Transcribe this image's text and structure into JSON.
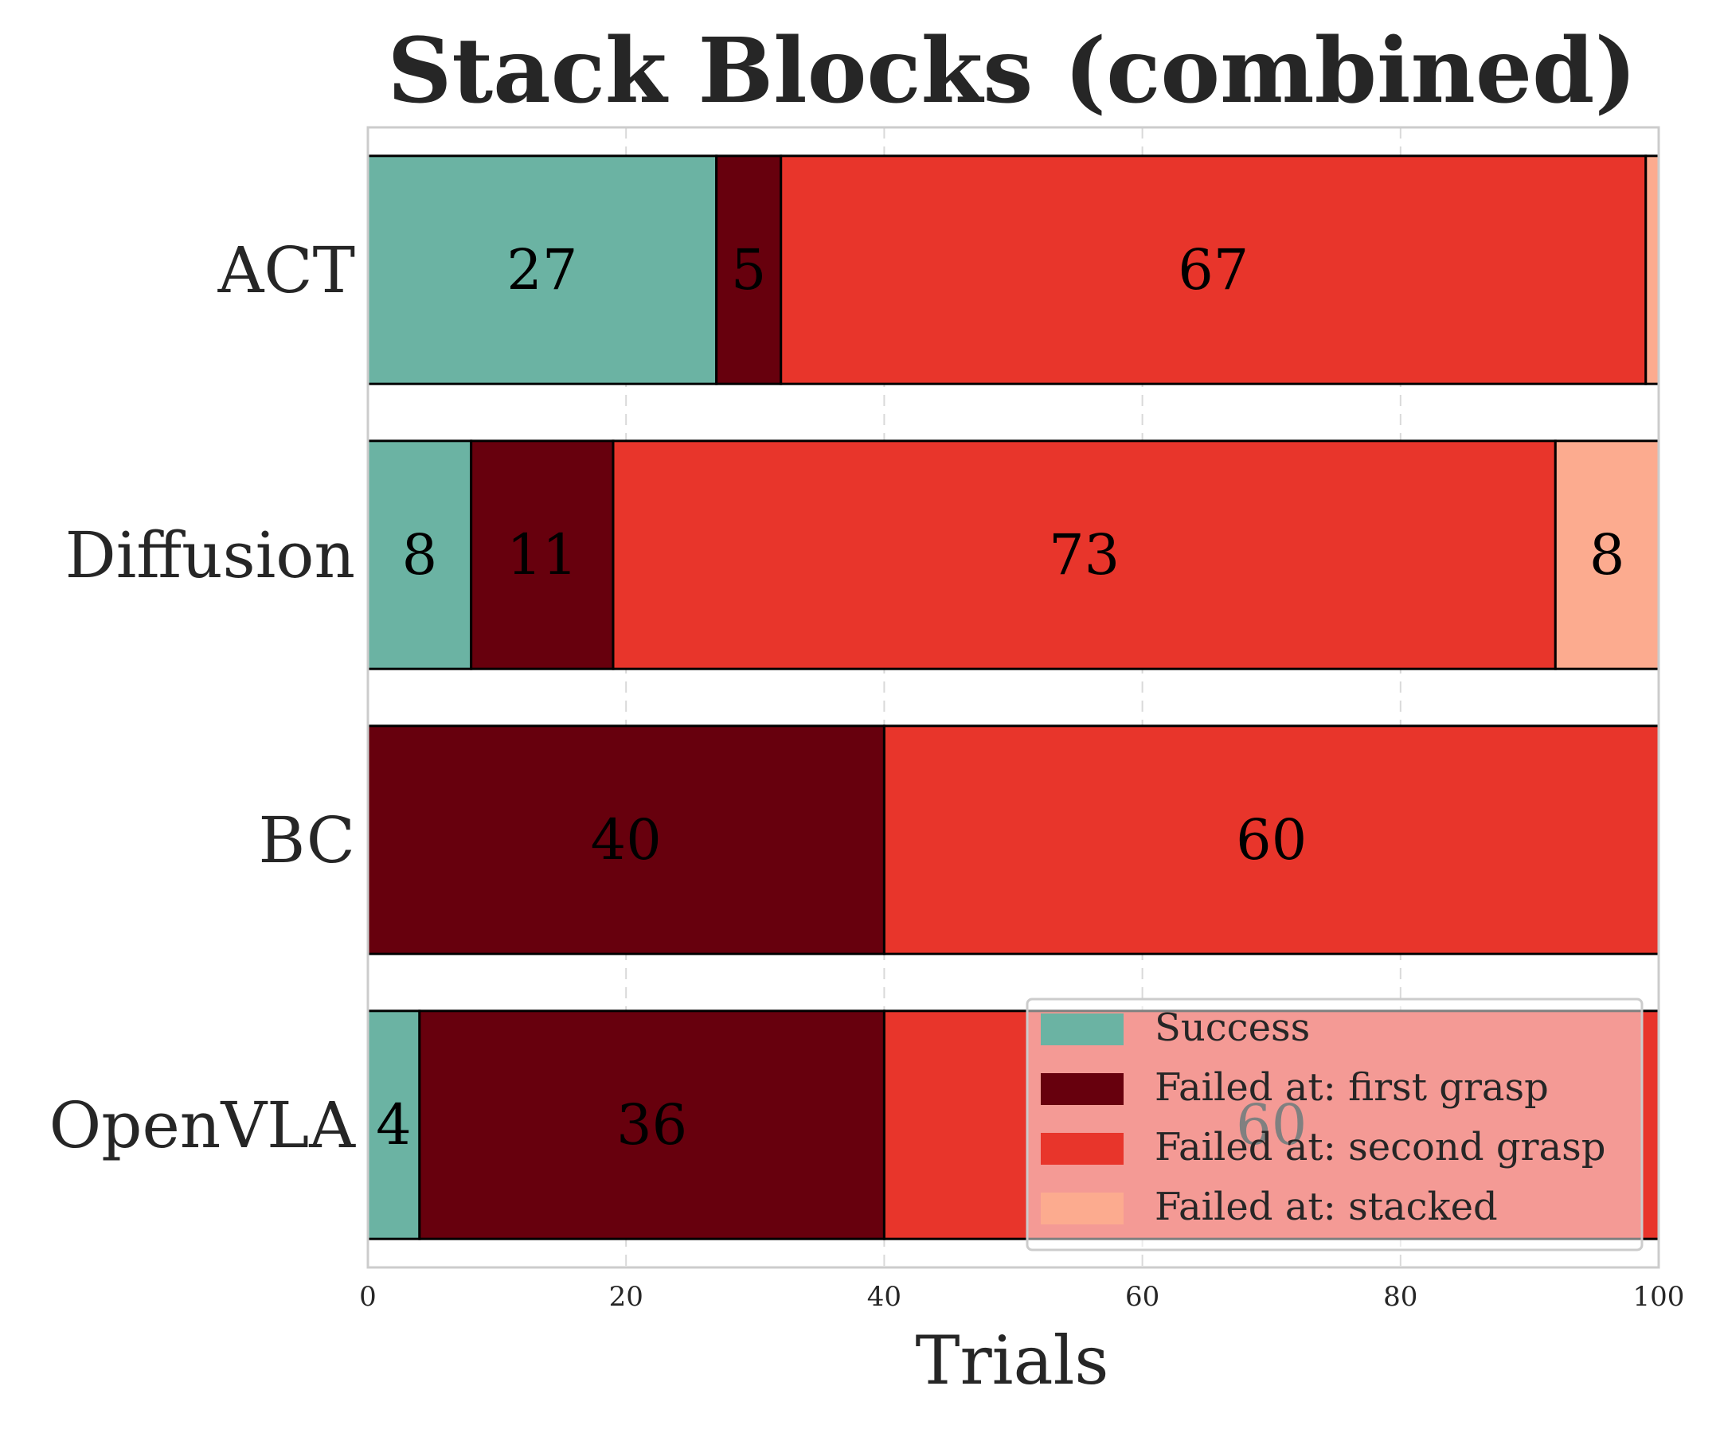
{
  "chart_data": {
    "type": "bar",
    "orientation": "horizontal",
    "stacked": true,
    "title": "Stack Blocks (combined)",
    "xlabel": "Trials",
    "ylabel": "",
    "xlim": [
      0,
      100
    ],
    "xticks": [
      "0",
      "20",
      "40",
      "60",
      "80",
      "100"
    ],
    "grid": true,
    "legend_position": "lower-right",
    "categories": [
      "ACT",
      "Diffusion",
      "BC",
      "OpenVLA"
    ],
    "series": [
      {
        "name": "Success",
        "color": "#6bb3a3",
        "values": [
          27,
          8,
          0,
          4
        ]
      },
      {
        "name": "Failed at: first grasp",
        "color": "#67000d",
        "values": [
          5,
          11,
          40,
          36
        ]
      },
      {
        "name": "Failed at: second grasp",
        "color": "#e8352b",
        "values": [
          67,
          73,
          60,
          60
        ]
      },
      {
        "name": "Failed at: stacked",
        "color": "#fcab8f",
        "values": [
          1,
          8,
          0,
          0
        ]
      }
    ],
    "value_labels": [
      [
        "27",
        "5",
        "67",
        ""
      ],
      [
        "8",
        "11",
        "73",
        "8"
      ],
      [
        "",
        "40",
        "60",
        ""
      ],
      [
        "4",
        "36",
        "60",
        ""
      ]
    ]
  }
}
